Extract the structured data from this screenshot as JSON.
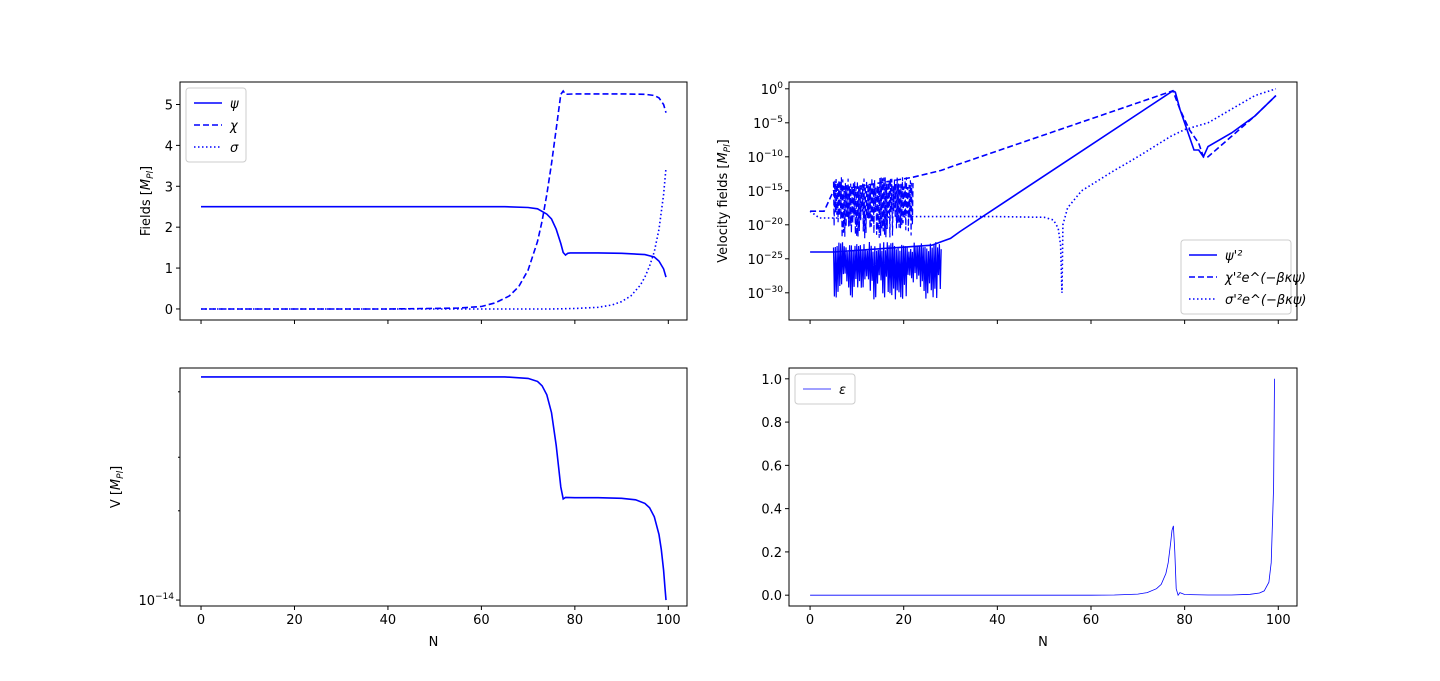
{
  "chart_data": [
    {
      "type": "line",
      "panel": "top-left",
      "xlabel": "",
      "ylabel": "Fields [M_Pl]",
      "ylabel_main": "Fields",
      "ylabel_sub": "Pl",
      "xlim": [
        -4.5,
        104
      ],
      "ylim": [
        -0.27,
        5.55
      ],
      "x_ticks": [
        0,
        20,
        40,
        60,
        80,
        100
      ],
      "x_ticklabels_visible": false,
      "y_ticks": [
        0,
        1,
        2,
        3,
        4,
        5
      ],
      "y_ticklabels": [
        "0",
        "1",
        "2",
        "3",
        "4",
        "5"
      ],
      "legend_position": "upper-left",
      "series": [
        {
          "name": "ψ",
          "style": "solid",
          "x": [
            0,
            40,
            65,
            70,
            72,
            74,
            75,
            76,
            77,
            77.5,
            78,
            78.5,
            79,
            80,
            85,
            90,
            95,
            97,
            98,
            99,
            99.5
          ],
          "y": [
            2.5,
            2.5,
            2.5,
            2.48,
            2.45,
            2.32,
            2.2,
            1.95,
            1.6,
            1.38,
            1.32,
            1.36,
            1.37,
            1.37,
            1.37,
            1.36,
            1.33,
            1.27,
            1.17,
            0.98,
            0.78
          ]
        },
        {
          "name": "χ",
          "style": "dashed",
          "x": [
            0,
            40,
            55,
            60,
            63,
            66,
            68,
            70,
            72,
            73,
            74,
            75,
            76,
            77,
            77.5,
            78,
            80,
            85,
            90,
            95,
            97,
            98,
            99,
            99.5
          ],
          "y": [
            0,
            0,
            0.02,
            0.06,
            0.15,
            0.32,
            0.55,
            0.95,
            1.65,
            2.15,
            2.8,
            3.55,
            4.4,
            5.25,
            5.33,
            5.25,
            5.26,
            5.26,
            5.26,
            5.25,
            5.22,
            5.16,
            5.0,
            4.8
          ]
        },
        {
          "name": "σ",
          "style": "dotted",
          "x": [
            0,
            60,
            75,
            80,
            85,
            88,
            90,
            92,
            94,
            95,
            96,
            97,
            98,
            99,
            99.5
          ],
          "y": [
            0,
            0,
            0,
            0.01,
            0.04,
            0.1,
            0.18,
            0.32,
            0.58,
            0.78,
            1.05,
            1.4,
            1.95,
            2.8,
            3.45
          ]
        }
      ]
    },
    {
      "type": "line",
      "panel": "top-right",
      "xlabel": "",
      "ylabel": "Velocity fields [M_Pl]",
      "ylabel_main": "Velocity fields",
      "ylabel_sub": "Pl",
      "yscale": "log",
      "xlim": [
        -4.5,
        104
      ],
      "ylim_log10": [
        -34,
        1
      ],
      "x_ticks": [
        0,
        20,
        40,
        60,
        80,
        100
      ],
      "x_ticklabels_visible": false,
      "y_ticks_log10": [
        0,
        -5,
        -10,
        -15,
        -20,
        -25,
        -30
      ],
      "y_ticklabels": [
        {
          "base": "10",
          "exp": "0"
        },
        {
          "base": "10",
          "exp": "−5"
        },
        {
          "base": "10",
          "exp": "−10"
        },
        {
          "base": "10",
          "exp": "−15"
        },
        {
          "base": "10",
          "exp": "−20"
        },
        {
          "base": "10",
          "exp": "−25"
        },
        {
          "base": "10",
          "exp": "−30"
        }
      ],
      "legend_position": "lower-right",
      "series": [
        {
          "name": "ψ'²",
          "style": "solid",
          "x_log10": [
            0,
            5,
            26,
            28,
            30,
            32,
            77.5,
            78,
            79,
            80,
            81,
            82,
            83,
            84,
            85,
            90,
            95,
            99.5
          ],
          "log10_y": [
            -24,
            -24,
            -23,
            -22.5,
            -22,
            -21,
            -0.3,
            -0.5,
            -3,
            -5,
            -7,
            -9,
            -9,
            -10,
            -8.5,
            -6.5,
            -4,
            -1
          ],
          "oscillation_band": {
            "x": [
              5,
              28
            ],
            "log10_y": [
              -31,
              -22.5
            ]
          }
        },
        {
          "name": "χ'²e^(−βκψ)",
          "style": "dashed",
          "x_log10": [
            0,
            3,
            5,
            22,
            25,
            28,
            30,
            77.5,
            79,
            81,
            83,
            84,
            85,
            90,
            95,
            99.5
          ],
          "log10_y": [
            -18,
            -18,
            -15,
            -13,
            -12.5,
            -12,
            -11.5,
            -0.3,
            -3,
            -6,
            -8,
            -10,
            -10,
            -7,
            -4,
            -1
          ],
          "oscillation_band": {
            "x": [
              5,
              22
            ],
            "log10_y": [
              -22,
              -13
            ]
          }
        },
        {
          "name": "σ'²e^(−βκψ)",
          "style": "dotted",
          "x_log10": [
            0,
            2,
            10,
            22,
            30,
            40,
            50,
            52,
            53,
            53.5,
            53.7,
            53.8,
            54,
            55,
            58,
            65,
            70,
            77,
            80,
            85,
            90,
            95,
            99.5
          ],
          "log10_y": [
            -18,
            -19,
            -19,
            -18.8,
            -18.8,
            -18.8,
            -18.9,
            -19.3,
            -20.5,
            -23,
            -28,
            -30,
            -20,
            -17.5,
            -15,
            -12,
            -10,
            -7,
            -6,
            -5,
            -3,
            -1,
            0
          ]
        }
      ]
    },
    {
      "type": "line",
      "panel": "bottom-left",
      "xlabel": "N",
      "ylabel": "V [M_Pl]",
      "ylabel_main": "V",
      "ylabel_sub": "Pl",
      "yscale": "log",
      "xlim": [
        -4.5,
        104
      ],
      "x_ticks": [
        0,
        20,
        40,
        60,
        80,
        100
      ],
      "x_ticklabels": [
        "0",
        "20",
        "40",
        "60",
        "80",
        "100"
      ],
      "y_ticks_log10": [
        -14
      ],
      "y_ticklabels": [
        {
          "base": "10",
          "exp": "−14"
        }
      ],
      "ylim_log10": [
        -14.02,
        -13.22
      ],
      "series": [
        {
          "name": "V",
          "style": "solid",
          "x": [
            0,
            65,
            70,
            72,
            73,
            74,
            75,
            76,
            76.5,
            77,
            77.5,
            78,
            80,
            85,
            90,
            93,
            95,
            96,
            97,
            98,
            98.5,
            99,
            99.3,
            99.5
          ],
          "log10_y": [
            -13.25,
            -13.25,
            -13.255,
            -13.265,
            -13.28,
            -13.31,
            -13.37,
            -13.48,
            -13.55,
            -13.62,
            -13.66,
            -13.655,
            -13.656,
            -13.656,
            -13.658,
            -13.663,
            -13.675,
            -13.69,
            -13.72,
            -13.78,
            -13.83,
            -13.9,
            -13.96,
            -14.0
          ]
        }
      ]
    },
    {
      "type": "line",
      "panel": "bottom-right",
      "xlabel": "N",
      "ylabel": "",
      "xlim": [
        -4.5,
        104
      ],
      "ylim": [
        -0.05,
        1.05
      ],
      "x_ticks": [
        0,
        20,
        40,
        60,
        80,
        100
      ],
      "x_ticklabels": [
        "0",
        "20",
        "40",
        "60",
        "80",
        "100"
      ],
      "y_ticks": [
        0.0,
        0.2,
        0.4,
        0.6,
        0.8,
        1.0
      ],
      "y_ticklabels": [
        "0.0",
        "0.2",
        "0.4",
        "0.6",
        "0.8",
        "1.0"
      ],
      "legend_position": "upper-left",
      "series": [
        {
          "name": "ε",
          "style": "thin",
          "x": [
            0,
            60,
            65,
            70,
            72,
            74,
            75,
            76,
            76.5,
            77,
            77.3,
            77.6,
            77.9,
            78.2,
            78.6,
            79,
            80,
            85,
            90,
            94,
            96,
            97,
            98,
            98.5,
            99,
            99.2
          ],
          "y": [
            0,
            0,
            0.001,
            0.005,
            0.012,
            0.03,
            0.05,
            0.1,
            0.15,
            0.24,
            0.3,
            0.32,
            0.2,
            0.03,
            0.0,
            0.012,
            0.003,
            0.001,
            0.001,
            0.004,
            0.01,
            0.02,
            0.06,
            0.15,
            0.5,
            1.0
          ]
        }
      ]
    }
  ]
}
